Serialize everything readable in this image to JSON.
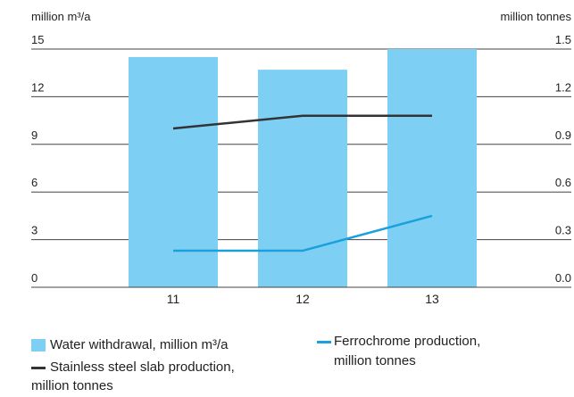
{
  "chart_data": {
    "type": "bar",
    "categories": [
      "11",
      "12",
      "13"
    ],
    "y_left": {
      "label": "million m³/a",
      "min": 0,
      "max": 15,
      "ticks": [
        "0",
        "3",
        "6",
        "9",
        "12",
        "15"
      ]
    },
    "y_right": {
      "label": "million tonnes",
      "min": 0,
      "max": 1.5,
      "ticks": [
        "0.0",
        "0.3",
        "0.6",
        "0.9",
        "1.2",
        "1.5"
      ]
    },
    "grid": true,
    "series": [
      {
        "name": "Water withdrawal, million m³/a",
        "kind": "bar",
        "axis": "left",
        "color": "#7dd0f4",
        "values": [
          14.5,
          13.7,
          15.0
        ]
      },
      {
        "name": "Stainless steel slab production, million tonnes",
        "kind": "line",
        "axis": "right",
        "color": "#333333",
        "values": [
          1.0,
          1.08,
          1.08
        ]
      },
      {
        "name": "Ferrochrome production, million tonnes",
        "kind": "line",
        "axis": "right",
        "color": "#1aa0dc",
        "values": [
          0.23,
          0.23,
          0.45
        ]
      }
    ],
    "legend": {
      "placement": "bottom",
      "items": [
        {
          "line1": "Water withdrawal, million m³/a",
          "line2": ""
        },
        {
          "line1": "Stainless steel slab production,",
          "line2": "million tonnes"
        },
        {
          "line1": "Ferrochrome production,",
          "line2": "million tonnes"
        }
      ]
    }
  }
}
